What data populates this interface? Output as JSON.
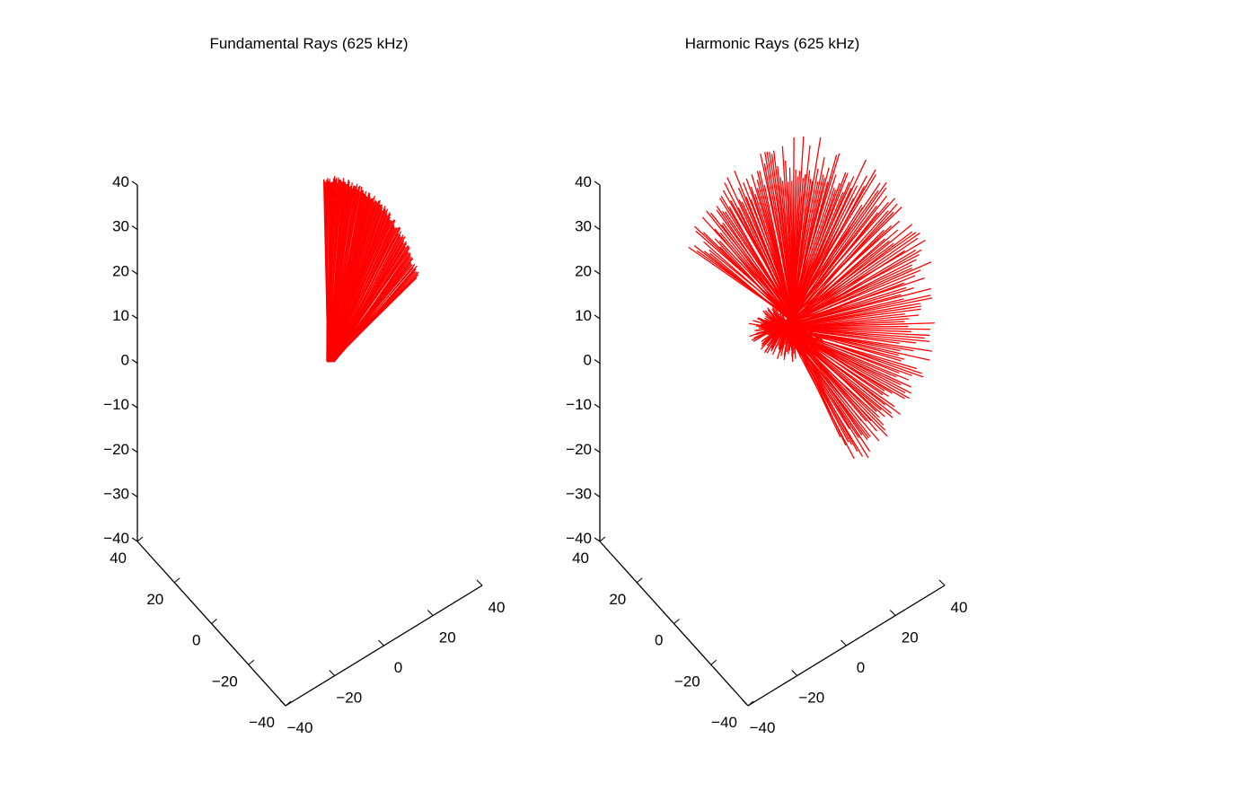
{
  "chart_data": [
    {
      "type": "line3d",
      "title": "Fundamental Rays (625 kHz)",
      "xlabel": "",
      "ylabel": "",
      "zlabel": "",
      "xlim": [
        -40,
        40
      ],
      "ylim": [
        -40,
        40
      ],
      "zlim": [
        -40,
        40
      ],
      "x_ticks": [
        "−40",
        "−20",
        "0",
        "20",
        "40"
      ],
      "y_ticks": [
        "−40",
        "−20",
        "0",
        "20",
        "40"
      ],
      "z_ticks": [
        "−40",
        "−30",
        "−20",
        "−10",
        "0",
        "10",
        "20",
        "30",
        "40"
      ],
      "grid": false,
      "series_color": "#ff0000",
      "rays": {
        "count": 120,
        "origin_projected_z_approx": 1,
        "description_free": true,
        "tip_arc": {
          "start_angle_deg": -100,
          "end_angle_deg": -28,
          "radius_z_units": 39
        }
      }
    },
    {
      "type": "line3d",
      "title": "Harmonic Rays (625 kHz)",
      "xlabel": "",
      "ylabel": "",
      "zlabel": "",
      "xlim": [
        -40,
        40
      ],
      "ylim": [
        -40,
        40
      ],
      "zlim": [
        -40,
        40
      ],
      "x_ticks": [
        "−40",
        "−20",
        "0",
        "20",
        "40"
      ],
      "y_ticks": [
        "−40",
        "−20",
        "0",
        "20",
        "40"
      ],
      "z_ticks": [
        "−40",
        "−30",
        "−20",
        "−10",
        "0",
        "10",
        "20",
        "30",
        "40"
      ],
      "grid": false,
      "series_color": "#ff0000",
      "rays": {
        "count": 220,
        "tip_arc": {
          "start_angle_deg": -160,
          "end_angle_deg": 55,
          "radius_z_units": 38
        }
      }
    }
  ]
}
